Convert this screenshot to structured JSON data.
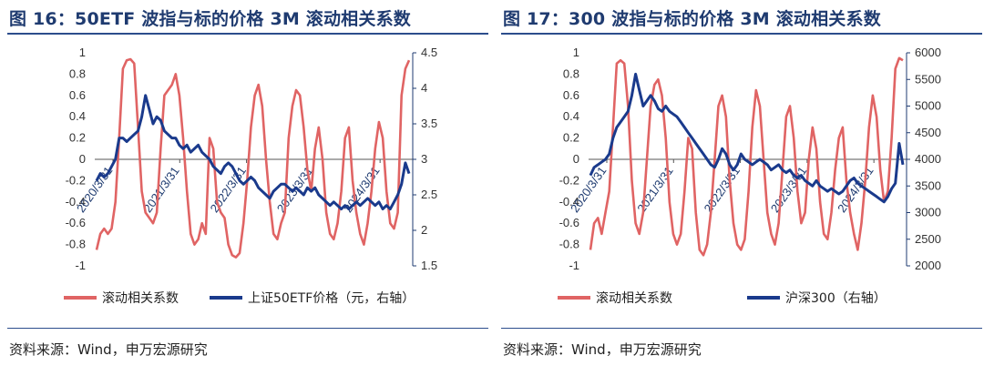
{
  "colors": {
    "corr": "#e06464",
    "price": "#1a3a8c",
    "title": "#1f3b70"
  },
  "chart_data": [
    {
      "type": "line",
      "title": "图 16：50ETF 波指与标的价格 3M 滚动相关系数",
      "source": "资料来源：Wind，申万宏源研究",
      "ylim_left": [
        -1,
        1
      ],
      "ylim_right": [
        1.5,
        4.5
      ],
      "yticks_left": [
        "1",
        "0.8",
        "0.6",
        "0.4",
        "0.2",
        "0",
        "-0.2",
        "-0.4",
        "-0.6",
        "-0.8",
        "-1"
      ],
      "yticks_right": [
        "4.5",
        "4",
        "3.5",
        "3",
        "2.5",
        "2",
        "1.5"
      ],
      "x_tick_labels": [
        "2020/3/31",
        "2021/3/31",
        "2022/3/31",
        "2023/3/31",
        "2024/3/31"
      ],
      "x_tick_positions": [
        0.0,
        0.21,
        0.42,
        0.63,
        0.84
      ],
      "series": [
        {
          "name": "滚动相关系数",
          "axis": "left",
          "values": [
            -0.85,
            -0.7,
            -0.65,
            -0.7,
            -0.65,
            -0.4,
            0.2,
            0.85,
            0.93,
            0.94,
            0.9,
            0.3,
            -0.3,
            -0.5,
            -0.55,
            -0.6,
            -0.5,
            0.1,
            0.6,
            0.65,
            0.7,
            0.8,
            0.6,
            0.2,
            -0.3,
            -0.7,
            -0.8,
            -0.75,
            -0.6,
            -0.7,
            0.2,
            0.1,
            -0.4,
            -0.5,
            -0.55,
            -0.8,
            -0.9,
            -0.92,
            -0.88,
            -0.6,
            -0.2,
            0.3,
            0.6,
            0.7,
            0.5,
            0.0,
            -0.4,
            -0.7,
            -0.75,
            -0.6,
            -0.5,
            0.2,
            0.5,
            0.65,
            0.6,
            0.3,
            -0.1,
            -0.3,
            0.1,
            0.3,
            0.0,
            -0.5,
            -0.7,
            -0.75,
            -0.6,
            -0.3,
            0.2,
            0.3,
            -0.2,
            -0.5,
            -0.7,
            -0.8,
            -0.6,
            -0.3,
            0.1,
            0.35,
            0.2,
            -0.3,
            -0.6,
            -0.65,
            -0.5,
            0.6,
            0.85,
            0.93
          ]
        },
        {
          "name": "上证50ETF价格（元，右轴）",
          "axis": "right",
          "values": [
            2.7,
            2.8,
            2.75,
            2.8,
            2.9,
            3.0,
            3.3,
            3.3,
            3.25,
            3.3,
            3.35,
            3.4,
            3.6,
            3.9,
            3.7,
            3.5,
            3.6,
            3.55,
            3.4,
            3.35,
            3.3,
            3.3,
            3.2,
            3.15,
            3.2,
            3.1,
            3.15,
            3.2,
            3.1,
            3.05,
            3.0,
            2.9,
            2.85,
            2.8,
            2.9,
            2.95,
            2.9,
            2.8,
            2.7,
            2.65,
            2.7,
            2.75,
            2.7,
            2.6,
            2.55,
            2.5,
            2.45,
            2.55,
            2.6,
            2.65,
            2.65,
            2.6,
            2.55,
            2.6,
            2.55,
            2.5,
            2.6,
            2.55,
            2.6,
            2.5,
            2.45,
            2.4,
            2.35,
            2.4,
            2.35,
            2.3,
            2.35,
            2.3,
            2.35,
            2.4,
            2.35,
            2.4,
            2.45,
            2.4,
            2.35,
            2.4,
            2.3,
            2.35,
            2.3,
            2.4,
            2.5,
            2.65,
            2.95,
            2.8
          ]
        }
      ]
    },
    {
      "type": "line",
      "title": "图 17：300 波指与标的价格 3M 滚动相关系数",
      "source": "资料来源：Wind，申万宏源研究",
      "ylim_left": [
        -1,
        1
      ],
      "ylim_right": [
        2000,
        6000
      ],
      "yticks_left": [
        "1",
        "0.8",
        "0.6",
        "0.4",
        "0.2",
        "0",
        "-0.2",
        "-0.4",
        "-0.6",
        "-0.8",
        "-1"
      ],
      "yticks_right": [
        "6000",
        "5500",
        "5000",
        "4500",
        "4000",
        "3500",
        "3000",
        "2500",
        "2000"
      ],
      "x_tick_labels": [
        "2020/3/31",
        "2021/3/31",
        "2022/3/31",
        "2023/3/31",
        "2024/3/31"
      ],
      "x_tick_positions": [
        0.0,
        0.21,
        0.42,
        0.63,
        0.84
      ],
      "series": [
        {
          "name": "滚动相关系数",
          "axis": "left",
          "values": [
            -0.85,
            -0.6,
            -0.55,
            -0.7,
            -0.5,
            -0.3,
            0.3,
            0.9,
            0.93,
            0.9,
            0.5,
            -0.2,
            -0.6,
            -0.7,
            -0.5,
            0.0,
            0.5,
            0.7,
            0.75,
            0.6,
            0.2,
            -0.4,
            -0.7,
            -0.8,
            -0.7,
            -0.3,
            0.2,
            0.1,
            -0.5,
            -0.85,
            -0.9,
            -0.8,
            -0.5,
            0.0,
            0.5,
            0.6,
            0.4,
            -0.2,
            -0.6,
            -0.8,
            -0.85,
            -0.75,
            -0.3,
            0.3,
            0.65,
            0.5,
            0.0,
            -0.5,
            -0.7,
            -0.8,
            -0.6,
            -0.1,
            0.4,
            0.5,
            0.2,
            -0.3,
            -0.6,
            -0.5,
            0.0,
            0.3,
            0.1,
            -0.4,
            -0.7,
            -0.75,
            -0.5,
            -0.1,
            0.2,
            0.3,
            -0.2,
            -0.5,
            -0.7,
            -0.85,
            -0.6,
            -0.2,
            0.3,
            0.6,
            0.4,
            -0.1,
            -0.4,
            -0.3,
            0.2,
            0.85,
            0.95,
            0.93
          ]
        },
        {
          "name": "沪深300（右轴）",
          "axis": "right",
          "values": [
            3700,
            3850,
            3900,
            3950,
            4000,
            4100,
            4400,
            4600,
            4700,
            4800,
            4900,
            5200,
            5600,
            5300,
            5000,
            5100,
            5200,
            5100,
            4950,
            4900,
            5000,
            4900,
            4850,
            4800,
            4700,
            4600,
            4500,
            4400,
            4300,
            4200,
            4100,
            4000,
            3900,
            3850,
            4000,
            4200,
            4100,
            3900,
            3800,
            3900,
            4100,
            4000,
            3950,
            3900,
            3950,
            4000,
            3950,
            3900,
            3800,
            3850,
            3900,
            3800,
            3750,
            3800,
            3700,
            3650,
            3700,
            3600,
            3550,
            3500,
            3600,
            3500,
            3450,
            3400,
            3450,
            3400,
            3350,
            3400,
            3500,
            3600,
            3650,
            3550,
            3500,
            3450,
            3400,
            3350,
            3300,
            3250,
            3200,
            3300,
            3450,
            3550,
            4300,
            3900
          ]
        }
      ]
    }
  ]
}
